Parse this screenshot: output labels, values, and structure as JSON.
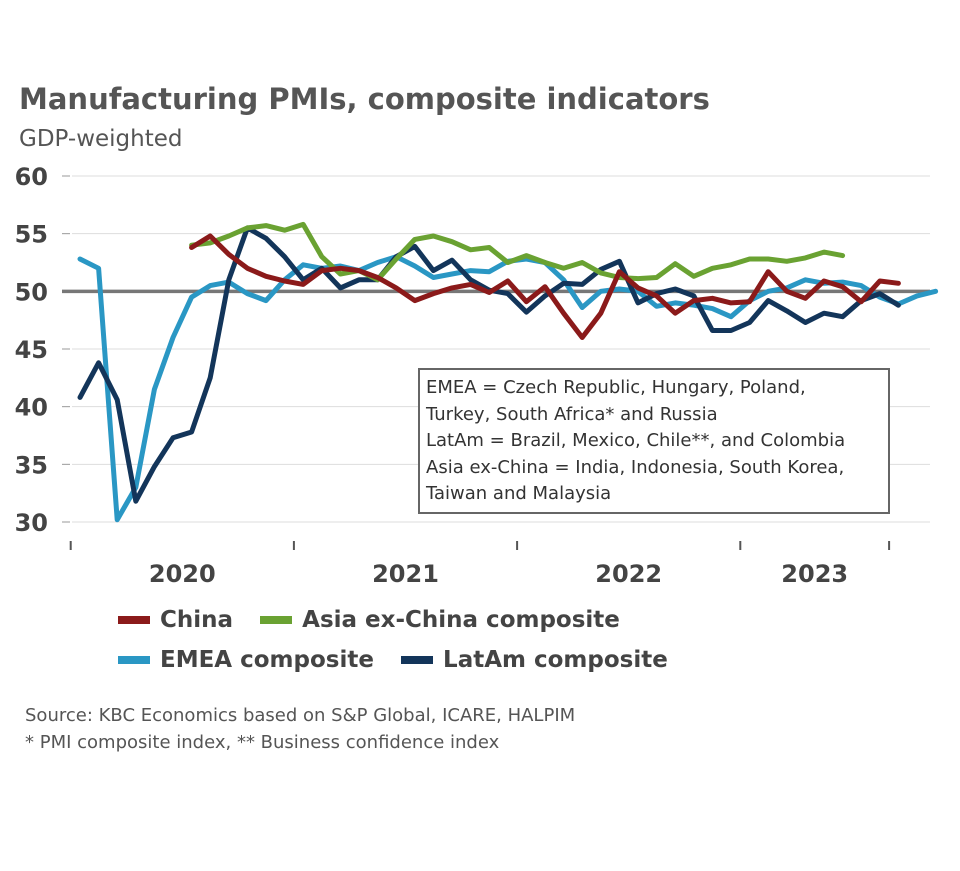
{
  "title": "Manufacturing PMIs, composite indicators",
  "subtitle": "GDP-weighted",
  "colors": {
    "china": "#8b1a1a",
    "asia": "#6aa232",
    "emea": "#2a97c4",
    "latam": "#13355a",
    "reference": "#777777",
    "grid": "#dddddd"
  },
  "note_box": {
    "lines": [
      "EMEA = Czech Republic, Hungary, Poland,",
      "Turkey, South Africa* and Russia",
      "LatAm = Brazil, Mexico, Chile**, and Colombia",
      "Asia ex-China = India, Indonesia, South Korea,",
      "Taiwan and Malaysia"
    ]
  },
  "source": {
    "line1": "Source: KBC Economics based on S&P Global, ICARE, HALPIM",
    "line2": "* PMI composite index, ** Business confidence index"
  },
  "chart_data": {
    "type": "line",
    "title": "Manufacturing PMIs, composite indicators",
    "subtitle": "GDP-weighted",
    "xlabel": "",
    "ylabel": "",
    "ylim": [
      30,
      60
    ],
    "yticks": [
      30,
      35,
      40,
      45,
      50,
      55,
      60
    ],
    "x_year_labels": [
      "2020",
      "2021",
      "2022",
      "2023"
    ],
    "x_start": "2020-01",
    "x_end": "2023-08",
    "reference_line": 50,
    "grid": true,
    "legend_position": "bottom",
    "series": [
      {
        "name": "China",
        "color_key": "china",
        "start": "2020-07",
        "values": [
          53.8,
          54.8,
          53.2,
          52.0,
          51.3,
          50.9,
          50.6,
          51.8,
          52.0,
          51.8,
          51.2,
          50.3,
          49.2,
          49.8,
          50.3,
          50.6,
          49.9,
          50.9,
          49.1,
          50.4,
          48.1,
          46.0,
          48.1,
          51.7,
          50.3,
          49.6,
          48.1,
          49.2,
          49.4,
          49.0,
          49.1,
          51.7,
          50.0,
          49.4,
          50.9,
          50.4,
          49.1,
          50.9,
          50.7
        ]
      },
      {
        "name": "Asia ex-China composite",
        "color_key": "asia",
        "start": "2020-07",
        "values": [
          54.0,
          54.2,
          54.8,
          55.5,
          55.7,
          55.3,
          55.8,
          53.0,
          51.5,
          51.8,
          51.0,
          52.8,
          54.5,
          54.8,
          54.3,
          53.6,
          53.8,
          52.5,
          53.1,
          52.5,
          52.0,
          52.5,
          51.6,
          51.2,
          51.1,
          51.2,
          52.4,
          51.3,
          52.0,
          52.3,
          52.8,
          52.8,
          52.6,
          52.9,
          53.4,
          53.1
        ]
      },
      {
        "name": "EMEA composite",
        "color_key": "emea",
        "start": "2020-01",
        "values": [
          52.8,
          52.0,
          30.2,
          33.0,
          41.5,
          46.0,
          49.5,
          50.5,
          50.8,
          49.8,
          49.2,
          51.0,
          52.3,
          52.0,
          52.2,
          51.8,
          52.5,
          53.0,
          52.2,
          51.2,
          51.5,
          51.8,
          51.7,
          52.6,
          52.8,
          52.5,
          51.0,
          48.6,
          50.0,
          50.2,
          50.0,
          48.7,
          49.0,
          48.8,
          48.5,
          47.8,
          49.2,
          50.0,
          50.3,
          51.0,
          50.7,
          50.8,
          50.5,
          49.5,
          48.9,
          49.6,
          50.0
        ]
      },
      {
        "name": "LatAm composite",
        "color_key": "latam",
        "start": "2020-01",
        "values": [
          40.8,
          43.8,
          40.6,
          31.8,
          34.8,
          37.3,
          37.8,
          42.5,
          51.0,
          55.5,
          54.6,
          53.0,
          51.0,
          52.0,
          50.3,
          51.0,
          51.0,
          53.0,
          53.9,
          51.8,
          52.7,
          51.0,
          50.1,
          49.8,
          48.2,
          49.6,
          50.7,
          50.6,
          51.9,
          52.6,
          49.0,
          49.8,
          50.2,
          49.6,
          46.6,
          46.6,
          47.3,
          49.2,
          48.3,
          47.3,
          48.1,
          47.8,
          49.2,
          49.8,
          48.8
        ]
      }
    ]
  }
}
